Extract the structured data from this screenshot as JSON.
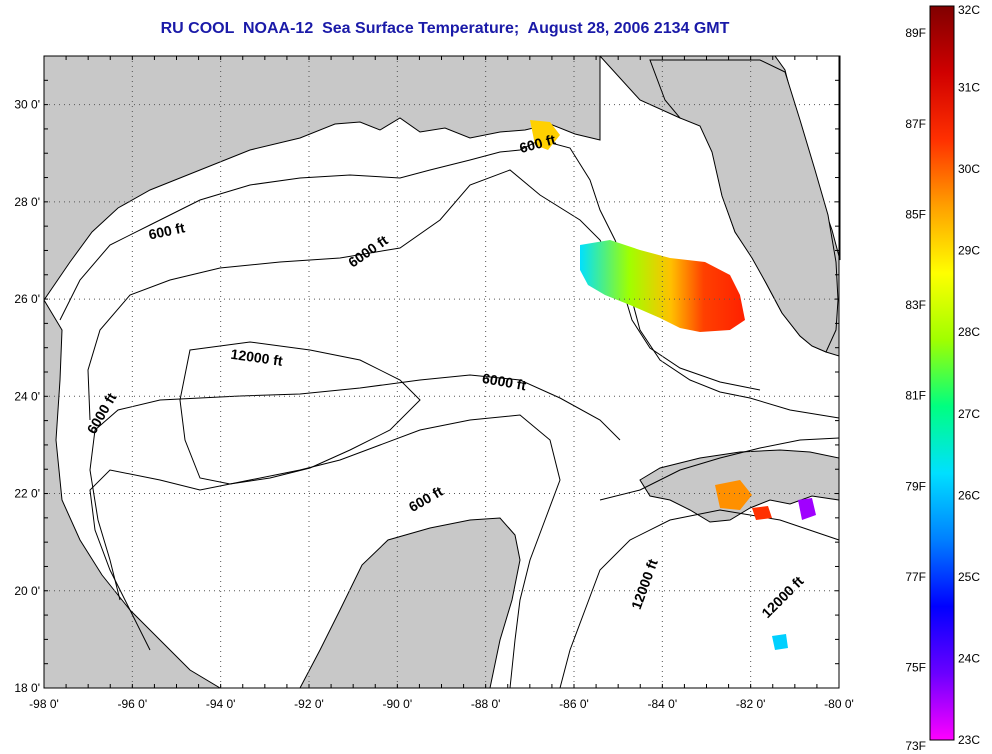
{
  "title": "RU COOL  NOAA-12  Sea Surface Temperature;  August 28, 2006 2134 GMT",
  "map": {
    "lon_range": [
      -98,
      -80
    ],
    "lat_range": [
      18,
      31
    ],
    "x_ticks": [
      "-98 0'",
      "-96 0'",
      "-94 0'",
      "-92 0'",
      "-90 0'",
      "-88 0'",
      "-86 0'",
      "-84 0'",
      "-82 0'",
      "-80 0'"
    ],
    "y_ticks": [
      "30 0'",
      "28 0'",
      "26 0'",
      "24 0'",
      "22 0'",
      "20 0'",
      "18 0'"
    ],
    "grid": "dotted",
    "land_color": "#c8c8c8",
    "water_color": "#ffffff"
  },
  "contour_labels": [
    {
      "text": "600 ft",
      "lon": -95.2,
      "lat": 27.3,
      "angle": -12
    },
    {
      "text": "6000 ft",
      "lon": -90.6,
      "lat": 26.9,
      "angle": -35
    },
    {
      "text": "600 ft",
      "lon": -86.8,
      "lat": 29.1,
      "angle": -15
    },
    {
      "text": "12000 ft",
      "lon": -93.2,
      "lat": 24.7,
      "angle": 8
    },
    {
      "text": "6000 ft",
      "lon": -87.6,
      "lat": 24.2,
      "angle": 10
    },
    {
      "text": "6000 ft",
      "lon": -96.6,
      "lat": 23.6,
      "angle": -60
    },
    {
      "text": "600 ft",
      "lon": -89.3,
      "lat": 21.8,
      "angle": -30
    },
    {
      "text": "12000 ft",
      "lon": -84.3,
      "lat": 20.1,
      "angle": -70
    },
    {
      "text": "12000 ft",
      "lon": -81.2,
      "lat": 19.8,
      "angle": -45
    }
  ],
  "colorbar": {
    "f_labels": [
      "89F",
      "87F",
      "85F",
      "83F",
      "81F",
      "79F",
      "77F",
      "75F",
      "73F"
    ],
    "c_labels": [
      "32C",
      "31C",
      "30C",
      "29C",
      "28C",
      "27C",
      "26C",
      "25C",
      "24C",
      "23C"
    ],
    "c_min": 23,
    "c_max": 32,
    "stops": [
      "#ff00ff",
      "#6a00ff",
      "#0000ff",
      "#0080ff",
      "#00e0ff",
      "#00ff80",
      "#a0ff00",
      "#ffff00",
      "#ffa000",
      "#ff3000",
      "#d00000",
      "#800000"
    ]
  }
}
